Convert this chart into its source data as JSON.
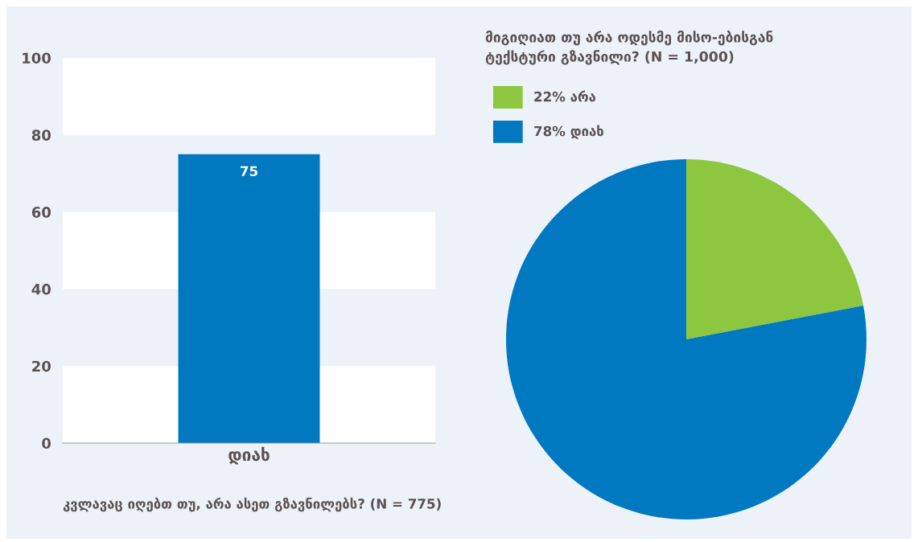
{
  "chart_data": [
    {
      "type": "bar",
      "categories": [
        "დიახ"
      ],
      "values": [
        75
      ],
      "color": "#0079c1",
      "ylim": [
        0,
        100
      ],
      "yticks": [
        0,
        20,
        40,
        60,
        80,
        100
      ],
      "data_labels": true,
      "bands": [
        {
          "axis": "y",
          "from": 0,
          "to": 20,
          "color": "#ffffff"
        },
        {
          "axis": "y",
          "from": 40,
          "to": 60,
          "color": "#ffffff"
        },
        {
          "axis": "y",
          "from": 80,
          "to": 100,
          "color": "#ffffff"
        }
      ],
      "annotations": [
        "კვლავაც იღებთ თუ, არა ასეთ გზავნილებს? (N = 775)"
      ]
    },
    {
      "type": "pie",
      "title": "მიგიღიათ თუ არა ოდესმე მისო-ებისგან\nტექსტური გზავნილი? (N = 1,000)",
      "categories": [
        "არა",
        "დიახ"
      ],
      "values": [
        22,
        78
      ],
      "value_labels": [
        "22%",
        "78%"
      ],
      "colors": [
        "#8dc63f",
        "#0079c1"
      ],
      "legend": "top left"
    }
  ]
}
